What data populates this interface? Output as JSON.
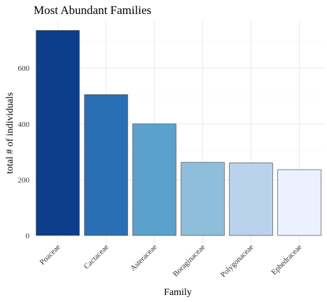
{
  "chart_data": {
    "type": "bar",
    "title": "Most Abundant Families",
    "xlabel": "Family",
    "ylabel": "total # of individuals",
    "categories": [
      "Poaceae",
      "Cactaceae",
      "Asteraceae",
      "Boraginaceae",
      "Polygonaceae",
      "Ephedraceae"
    ],
    "values": [
      735,
      505,
      400,
      262,
      260,
      236
    ],
    "colors": [
      "#0c3e8c",
      "#2a6fb4",
      "#5aa1cd",
      "#8ebedb",
      "#bad2ec",
      "#ebf1ff"
    ],
    "ylim": [
      0,
      780
    ],
    "yticks": [
      0,
      200,
      400,
      600
    ],
    "grid": true,
    "legend": "none"
  }
}
